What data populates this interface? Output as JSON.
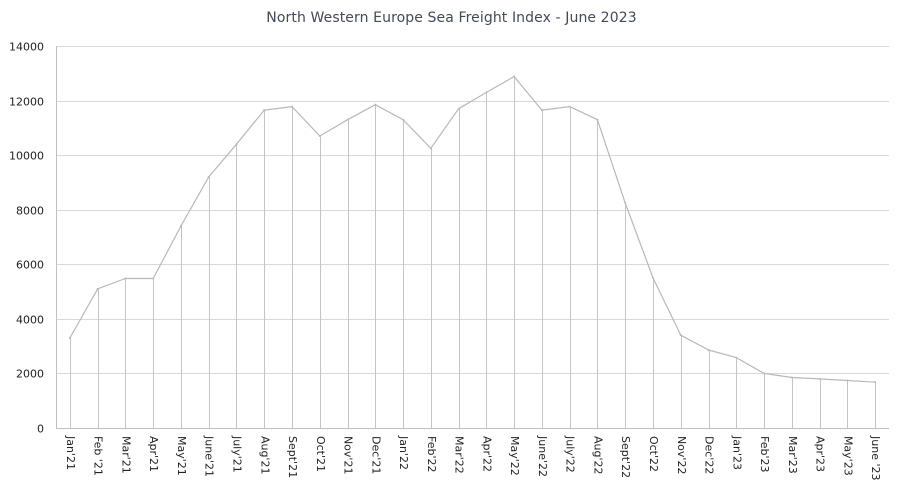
{
  "chart_data": {
    "type": "area",
    "title": "North Western Europe Sea Freight Index - June 2023",
    "xlabel": "",
    "ylabel": "",
    "ylim": [
      0,
      14000
    ],
    "yticks": [
      0,
      2000,
      4000,
      6000,
      8000,
      10000,
      12000,
      14000
    ],
    "grid": true,
    "categories": [
      "Jan'21",
      "Feb '21",
      "Mar'21",
      "Apr'21",
      "May'21",
      "June'21",
      "July'21",
      "Aug'21",
      "Sept'21",
      "Oct'21",
      "Nov'21",
      "Dec'21",
      "Jan'22",
      "Feb'22",
      "Mar'22",
      "Apr'22",
      "May'22",
      "June'22",
      "July'22",
      "Aug'22",
      "Sept'22",
      "Oct'22",
      "Nov'22",
      "Dec'22",
      "Jan'23",
      "Feb'23",
      "Mar'23",
      "Apr'23",
      "May'23",
      "June '23"
    ],
    "series": [
      {
        "name": "North Western Europe Sea Freight Index",
        "values": [
          3300,
          5100,
          5480,
          5480,
          7400,
          9200,
          10400,
          11650,
          11780,
          10700,
          11300,
          11850,
          11300,
          10250,
          11700,
          12300,
          12880,
          11650,
          11780,
          11300,
          8250,
          5500,
          3400,
          2860,
          2580,
          2000,
          1850,
          1800,
          1740,
          1680
        ],
        "color": "#b8b8b8"
      }
    ],
    "colors": {
      "line": "#b8b8b8",
      "drop_line": "#c4c4c4",
      "grid": "#d9d9d9",
      "axis": "#bfbfbf",
      "title": "#404a5a",
      "label": "#222222"
    }
  }
}
